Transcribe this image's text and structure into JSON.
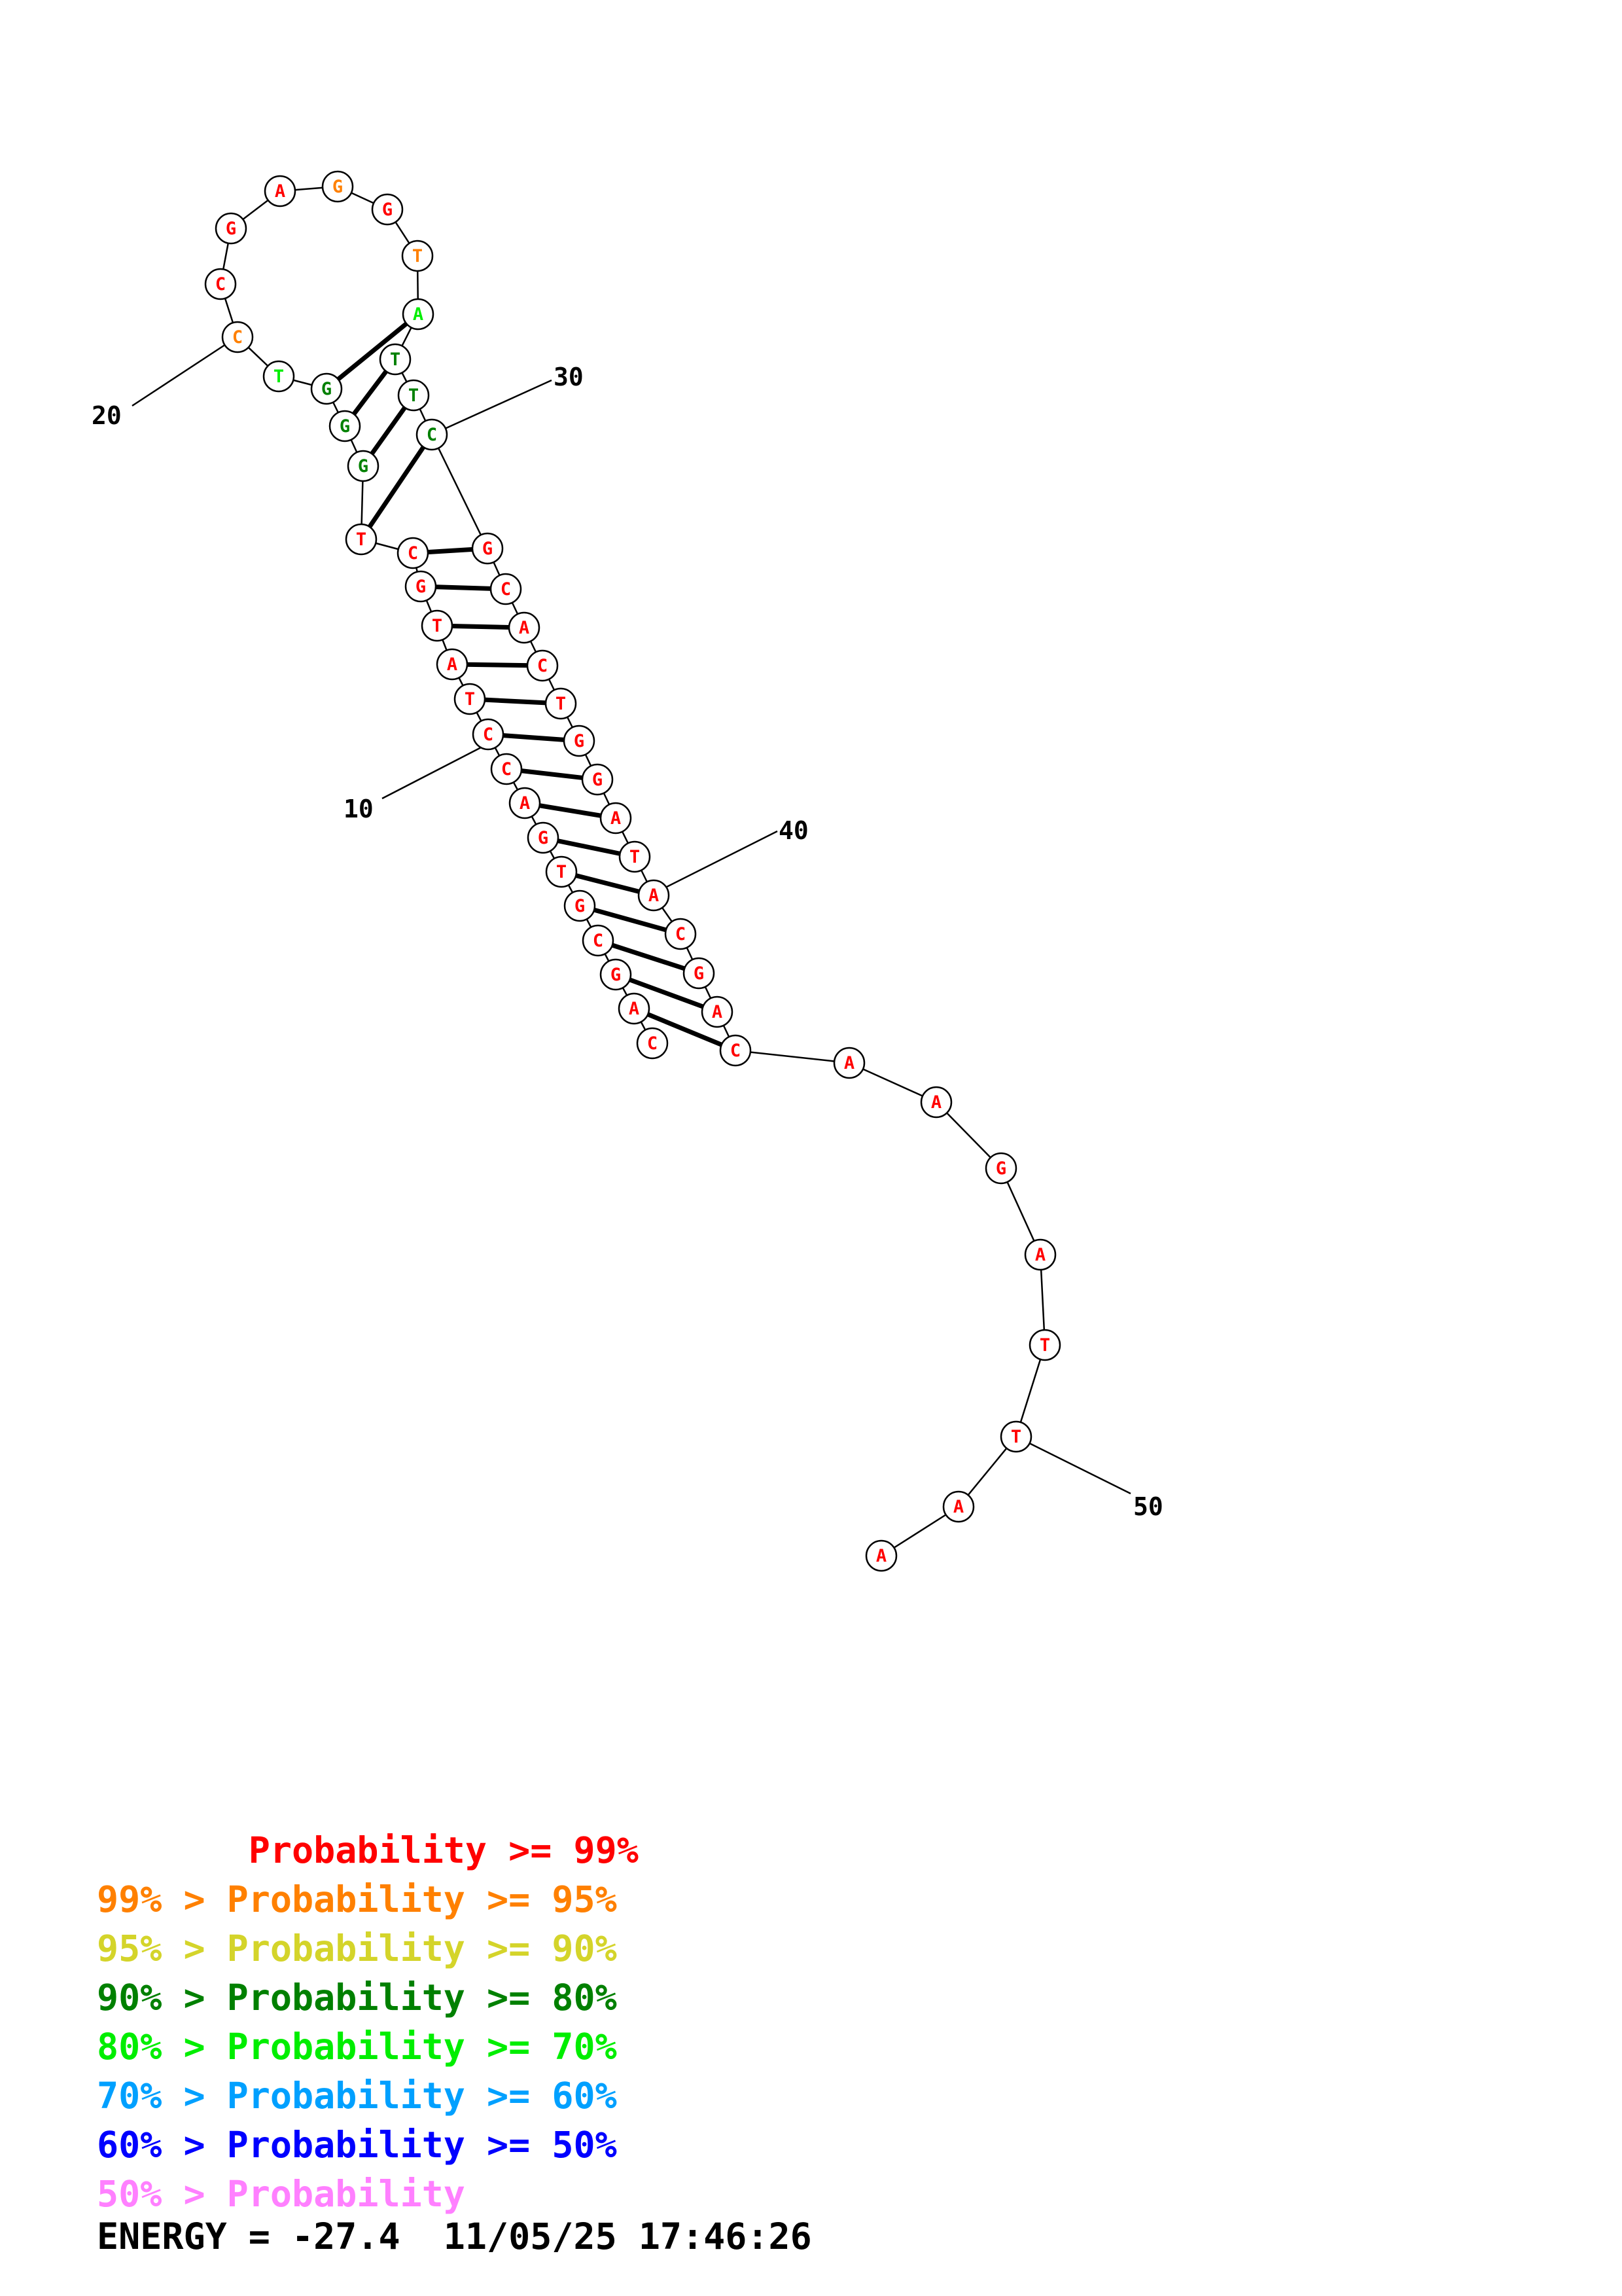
{
  "sequence": [
    "C",
    "A",
    "G",
    "C",
    "G",
    "T",
    "G",
    "A",
    "C",
    "C",
    "T",
    "A",
    "T",
    "G",
    "C",
    "T",
    "G",
    "G",
    "G",
    "T",
    "C",
    "C",
    "G",
    "A",
    "G",
    "G",
    "T",
    "A",
    "T",
    "T",
    "C",
    "G",
    "C",
    "A",
    "C",
    "T",
    "G",
    "G",
    "A",
    "T",
    "A",
    "C",
    "G",
    "A",
    "C",
    "A",
    "A",
    "G",
    "A",
    "T",
    "T",
    "A",
    "A"
  ],
  "probability_colors": [
    "red",
    "red",
    "red",
    "red",
    "red",
    "red",
    "red",
    "red",
    "red",
    "red",
    "red",
    "red",
    "red",
    "red",
    "red",
    "red",
    "darkgreen",
    "darkgreen",
    "darkgreen",
    "green",
    "orange",
    "red",
    "red",
    "red",
    "orange",
    "red",
    "orange",
    "green",
    "darkgreen",
    "darkgreen",
    "darkgreen",
    "red",
    "red",
    "red",
    "red",
    "red",
    "red",
    "red",
    "red",
    "red",
    "red",
    "red",
    "red",
    "red",
    "red",
    "red",
    "red",
    "red",
    "red",
    "red",
    "red",
    "red",
    "red"
  ],
  "pairs": [
    [
      2,
      45
    ],
    [
      3,
      44
    ],
    [
      4,
      43
    ],
    [
      5,
      42
    ],
    [
      6,
      41
    ],
    [
      7,
      40
    ],
    [
      8,
      39
    ],
    [
      9,
      38
    ],
    [
      10,
      37
    ],
    [
      11,
      36
    ],
    [
      12,
      35
    ],
    [
      13,
      34
    ],
    [
      14,
      33
    ],
    [
      15,
      32
    ],
    [
      16,
      31
    ],
    [
      17,
      30
    ],
    [
      18,
      29
    ],
    [
      19,
      28
    ]
  ],
  "position_labels": [
    {
      "text": "10",
      "nuc": 10
    },
    {
      "text": "20",
      "nuc": 22
    },
    {
      "text": "30",
      "nuc": 32
    },
    {
      "text": "40",
      "nuc": 42
    },
    {
      "text": "50",
      "nuc": 51
    }
  ],
  "colors": {
    "red": "#ff0000",
    "orange": "#ff8000",
    "yellow": "#d4d42a",
    "darkgreen": "#008000",
    "green": "#00ee00",
    "lightblue": "#00a0ff",
    "blue": "#0000ff",
    "pink": "#ff80ff"
  },
  "legend": [
    {
      "text": "       Probability >= 99%",
      "color": "red"
    },
    {
      "text": "99% > Probability >= 95%",
      "color": "orange"
    },
    {
      "text": "95% > Probability >= 90%",
      "color": "yellow"
    },
    {
      "text": "90% > Probability >= 80%",
      "color": "darkgreen"
    },
    {
      "text": "80% > Probability >= 70%",
      "color": "green"
    },
    {
      "text": "70% > Probability >= 60%",
      "color": "lightblue"
    },
    {
      "text": "60% > Probability >= 50%",
      "color": "blue"
    },
    {
      "text": "50% > Probability",
      "color": "pink"
    }
  ],
  "energy_text": "ENERGY = -27.4  11/05/25 17:46:26"
}
